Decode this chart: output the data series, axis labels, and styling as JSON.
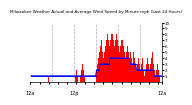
{
  "title": "Milwaukee Weather Actual and Average Wind Speed by Minute mph (Last 24 Hours)",
  "ylim": [
    0,
    10
  ],
  "xlim": [
    0,
    144
  ],
  "background_color": "#ffffff",
  "bar_color": "#ff0000",
  "avg_color": "#0000ff",
  "grid_color": "#b0b0b0",
  "n_bars": 144,
  "dashed_positions": [
    24,
    48,
    72,
    96,
    120
  ],
  "actual_wind": [
    0,
    0,
    0,
    0,
    0,
    0,
    0,
    0,
    0,
    0,
    1,
    0,
    0,
    0,
    0,
    0,
    0,
    0,
    0,
    1,
    0,
    0,
    0,
    0,
    0,
    0,
    0,
    0,
    0,
    0,
    0,
    0,
    0,
    0,
    0,
    0,
    0,
    0,
    0,
    0,
    0,
    0,
    0,
    0,
    0,
    0,
    0,
    0,
    0,
    1,
    2,
    1,
    0,
    0,
    1,
    2,
    2,
    3,
    2,
    1,
    0,
    0,
    0,
    0,
    0,
    0,
    0,
    0,
    0,
    0,
    0,
    0,
    2,
    3,
    4,
    5,
    6,
    7,
    6,
    5,
    4,
    5,
    6,
    7,
    8,
    7,
    6,
    7,
    8,
    9,
    8,
    7,
    6,
    7,
    8,
    7,
    6,
    5,
    6,
    7,
    8,
    7,
    6,
    5,
    4,
    5,
    6,
    5,
    4,
    5,
    4,
    3,
    4,
    5,
    4,
    3,
    2,
    3,
    4,
    3,
    2,
    3,
    4,
    3,
    2,
    1,
    2,
    3,
    4,
    3,
    2,
    3,
    4,
    5,
    4,
    3,
    2,
    1,
    2,
    3,
    2,
    1,
    0,
    0
  ],
  "avg_wind": [
    1,
    1,
    1,
    1,
    1,
    1,
    1,
    1,
    1,
    1,
    1,
    1,
    1,
    1,
    1,
    1,
    1,
    1,
    1,
    1,
    1,
    1,
    1,
    1,
    1,
    1,
    1,
    1,
    1,
    1,
    1,
    1,
    1,
    1,
    1,
    1,
    1,
    1,
    1,
    1,
    1,
    1,
    1,
    1,
    1,
    1,
    1,
    1,
    1,
    1,
    1,
    1,
    1,
    1,
    1,
    1,
    1,
    1,
    1,
    1,
    1,
    1,
    1,
    1,
    1,
    1,
    1,
    1,
    1,
    1,
    1,
    1,
    2,
    2,
    2,
    2,
    3,
    3,
    3,
    3,
    3,
    3,
    3,
    3,
    3,
    3,
    3,
    4,
    4,
    4,
    4,
    4,
    4,
    4,
    4,
    4,
    4,
    4,
    4,
    4,
    4,
    4,
    4,
    4,
    4,
    4,
    4,
    4,
    4,
    3,
    3,
    3,
    3,
    3,
    3,
    3,
    2,
    2,
    2,
    2,
    2,
    2,
    2,
    2,
    2,
    2,
    2,
    2,
    2,
    2,
    2,
    2,
    2,
    2,
    2,
    1,
    1,
    1,
    1,
    1,
    1,
    1,
    1,
    1
  ],
  "tick_positions": [
    0,
    24,
    48,
    72,
    96,
    120,
    144
  ],
  "tick_labels": [
    "12a",
    "",
    "12p",
    "",
    "",
    "",
    "12a"
  ],
  "ytick_positions": [
    1,
    2,
    3,
    4,
    5,
    6,
    7,
    8,
    9,
    10
  ],
  "ytick_labels": [
    "1",
    "2",
    "3",
    "4",
    "5",
    "6",
    "7",
    "8",
    "9",
    "10"
  ]
}
